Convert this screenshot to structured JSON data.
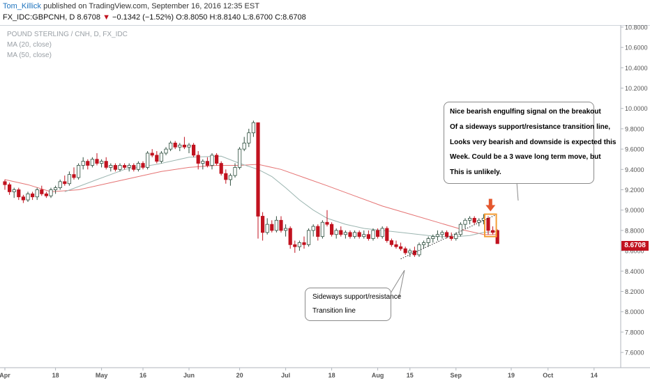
{
  "header": {
    "author": "Tom_Killick",
    "published_text": "published on TradingView.com, September 16, 2016 12:35 EST",
    "symbol": "FX_IDC:GBPCNH, D",
    "last": "8.6708",
    "change_arrow": "▼",
    "change": "−0.1342 (−1.52%)",
    "open": "O:8.8050",
    "high": "H:8.8140",
    "low": "L:8.6700",
    "close": "C:8.6708"
  },
  "legend": {
    "title": "POUND STERLING / CNH, D, FX_IDC",
    "ma20": "MA (20, close)",
    "ma50": "MA (50, close)"
  },
  "annotations": {
    "breakout_lines": [
      "Nice bearish engulfing signal on the breakout",
      "Of a sideways support/resistance transition line,",
      "Looks very bearish and downside is expected this",
      "Week. Could be a 3 wave long term move, but",
      "This is unlikely."
    ],
    "trendline_lines": [
      "Sideways support/resistance",
      "Transition line"
    ]
  },
  "price_tag": "8.6708",
  "colors": {
    "up_fill": "#ffffff",
    "up_border": "#2f4f3f",
    "down": "#c1121f",
    "ma20": "#9bb5b0",
    "ma50": "#e57373",
    "highlight": "#f39c34",
    "signal_arrow": "#e4572e"
  },
  "chart_data": {
    "type": "candlestick",
    "y_axis": {
      "ticks": [
        "10.8000",
        "10.6000",
        "10.4000",
        "10.2000",
        "10.0000",
        "9.8000",
        "9.6000",
        "9.4000",
        "9.2000",
        "9.0000",
        "8.8000",
        "8.6000",
        "8.4000",
        "8.2000",
        "8.0000",
        "7.8000",
        "7.6000"
      ],
      "range": [
        7.45,
        10.82
      ]
    },
    "x_axis": {
      "labels": [
        "Apr",
        "18",
        "May",
        "16",
        "Jun",
        "20",
        "Jul",
        "18",
        "Aug",
        "15",
        "Sep",
        "19",
        "Oct",
        "14"
      ],
      "label_index": [
        0,
        11,
        21,
        30,
        40,
        51,
        61,
        71,
        81,
        88,
        98,
        110,
        118,
        128
      ]
    },
    "candles": [
      {
        "o": 9.28,
        "h": 9.3,
        "l": 9.2,
        "c": 9.25
      },
      {
        "o": 9.25,
        "h": 9.27,
        "l": 9.15,
        "c": 9.18
      },
      {
        "o": 9.18,
        "h": 9.22,
        "l": 9.12,
        "c": 9.2
      },
      {
        "o": 9.2,
        "h": 9.22,
        "l": 9.1,
        "c": 9.13
      },
      {
        "o": 9.13,
        "h": 9.15,
        "l": 9.07,
        "c": 9.1
      },
      {
        "o": 9.1,
        "h": 9.18,
        "l": 9.08,
        "c": 9.16
      },
      {
        "o": 9.16,
        "h": 9.18,
        "l": 9.1,
        "c": 9.13
      },
      {
        "o": 9.13,
        "h": 9.22,
        "l": 9.1,
        "c": 9.2
      },
      {
        "o": 9.2,
        "h": 9.24,
        "l": 9.14,
        "c": 9.16
      },
      {
        "o": 9.16,
        "h": 9.18,
        "l": 9.12,
        "c": 9.14
      },
      {
        "o": 9.14,
        "h": 9.22,
        "l": 9.12,
        "c": 9.2
      },
      {
        "o": 9.2,
        "h": 9.24,
        "l": 9.16,
        "c": 9.22
      },
      {
        "o": 9.22,
        "h": 9.3,
        "l": 9.2,
        "c": 9.28
      },
      {
        "o": 9.28,
        "h": 9.34,
        "l": 9.24,
        "c": 9.26
      },
      {
        "o": 9.26,
        "h": 9.38,
        "l": 9.24,
        "c": 9.35
      },
      {
        "o": 9.35,
        "h": 9.42,
        "l": 9.3,
        "c": 9.32
      },
      {
        "o": 9.32,
        "h": 9.46,
        "l": 9.3,
        "c": 9.44
      },
      {
        "o": 9.44,
        "h": 9.52,
        "l": 9.4,
        "c": 9.48
      },
      {
        "o": 9.48,
        "h": 9.5,
        "l": 9.4,
        "c": 9.44
      },
      {
        "o": 9.44,
        "h": 9.52,
        "l": 9.42,
        "c": 9.5
      },
      {
        "o": 9.5,
        "h": 9.56,
        "l": 9.44,
        "c": 9.46
      },
      {
        "o": 9.46,
        "h": 9.5,
        "l": 9.42,
        "c": 9.48
      },
      {
        "o": 9.48,
        "h": 9.52,
        "l": 9.4,
        "c": 9.42
      },
      {
        "o": 9.42,
        "h": 9.46,
        "l": 9.38,
        "c": 9.44
      },
      {
        "o": 9.44,
        "h": 9.46,
        "l": 9.38,
        "c": 9.4
      },
      {
        "o": 9.4,
        "h": 9.46,
        "l": 9.38,
        "c": 9.44
      },
      {
        "o": 9.44,
        "h": 9.46,
        "l": 9.4,
        "c": 9.42
      },
      {
        "o": 9.42,
        "h": 9.46,
        "l": 9.38,
        "c": 9.44
      },
      {
        "o": 9.44,
        "h": 9.46,
        "l": 9.38,
        "c": 9.4
      },
      {
        "o": 9.4,
        "h": 9.48,
        "l": 9.38,
        "c": 9.46
      },
      {
        "o": 9.46,
        "h": 9.48,
        "l": 9.4,
        "c": 9.42
      },
      {
        "o": 9.42,
        "h": 9.58,
        "l": 9.4,
        "c": 9.56
      },
      {
        "o": 9.56,
        "h": 9.6,
        "l": 9.52,
        "c": 9.54
      },
      {
        "o": 9.54,
        "h": 9.58,
        "l": 9.46,
        "c": 9.48
      },
      {
        "o": 9.48,
        "h": 9.58,
        "l": 9.46,
        "c": 9.56
      },
      {
        "o": 9.56,
        "h": 9.62,
        "l": 9.54,
        "c": 9.6
      },
      {
        "o": 9.6,
        "h": 9.68,
        "l": 9.58,
        "c": 9.66
      },
      {
        "o": 9.66,
        "h": 9.68,
        "l": 9.6,
        "c": 9.62
      },
      {
        "o": 9.62,
        "h": 9.66,
        "l": 9.58,
        "c": 9.64
      },
      {
        "o": 9.64,
        "h": 9.72,
        "l": 9.6,
        "c": 9.62
      },
      {
        "o": 9.62,
        "h": 9.66,
        "l": 9.56,
        "c": 9.64
      },
      {
        "o": 9.64,
        "h": 9.66,
        "l": 9.52,
        "c": 9.54
      },
      {
        "o": 9.54,
        "h": 9.58,
        "l": 9.4,
        "c": 9.46
      },
      {
        "o": 9.46,
        "h": 9.5,
        "l": 9.4,
        "c": 9.48
      },
      {
        "o": 9.48,
        "h": 9.52,
        "l": 9.42,
        "c": 9.44
      },
      {
        "o": 9.44,
        "h": 9.56,
        "l": 9.4,
        "c": 9.54
      },
      {
        "o": 9.54,
        "h": 9.56,
        "l": 9.44,
        "c": 9.46
      },
      {
        "o": 9.46,
        "h": 9.48,
        "l": 9.34,
        "c": 9.36
      },
      {
        "o": 9.36,
        "h": 9.4,
        "l": 9.26,
        "c": 9.3
      },
      {
        "o": 9.3,
        "h": 9.36,
        "l": 9.24,
        "c": 9.34
      },
      {
        "o": 9.34,
        "h": 9.46,
        "l": 9.32,
        "c": 9.42
      },
      {
        "o": 9.42,
        "h": 9.62,
        "l": 9.4,
        "c": 9.6
      },
      {
        "o": 9.6,
        "h": 9.72,
        "l": 9.58,
        "c": 9.66
      },
      {
        "o": 9.66,
        "h": 9.8,
        "l": 9.62,
        "c": 9.76
      },
      {
        "o": 9.76,
        "h": 9.88,
        "l": 9.72,
        "c": 9.86
      },
      {
        "o": 9.86,
        "h": 9.86,
        "l": 8.72,
        "c": 8.94
      },
      {
        "o": 8.94,
        "h": 8.98,
        "l": 8.7,
        "c": 8.78
      },
      {
        "o": 8.78,
        "h": 8.92,
        "l": 8.76,
        "c": 8.86
      },
      {
        "o": 8.86,
        "h": 8.9,
        "l": 8.78,
        "c": 8.8
      },
      {
        "o": 8.8,
        "h": 8.94,
        "l": 8.78,
        "c": 8.9
      },
      {
        "o": 8.9,
        "h": 8.94,
        "l": 8.78,
        "c": 8.8
      },
      {
        "o": 8.8,
        "h": 8.86,
        "l": 8.74,
        "c": 8.82
      },
      {
        "o": 8.82,
        "h": 8.84,
        "l": 8.62,
        "c": 8.66
      },
      {
        "o": 8.66,
        "h": 8.7,
        "l": 8.58,
        "c": 8.64
      },
      {
        "o": 8.64,
        "h": 8.7,
        "l": 8.6,
        "c": 8.68
      },
      {
        "o": 8.68,
        "h": 8.74,
        "l": 8.62,
        "c": 8.66
      },
      {
        "o": 8.66,
        "h": 8.82,
        "l": 8.64,
        "c": 8.8
      },
      {
        "o": 8.8,
        "h": 8.86,
        "l": 8.74,
        "c": 8.84
      },
      {
        "o": 8.84,
        "h": 8.86,
        "l": 8.7,
        "c": 8.74
      },
      {
        "o": 8.74,
        "h": 8.9,
        "l": 8.72,
        "c": 8.88
      },
      {
        "o": 8.88,
        "h": 9.0,
        "l": 8.84,
        "c": 8.86
      },
      {
        "o": 8.86,
        "h": 8.88,
        "l": 8.74,
        "c": 8.76
      },
      {
        "o": 8.76,
        "h": 8.82,
        "l": 8.72,
        "c": 8.8
      },
      {
        "o": 8.8,
        "h": 8.84,
        "l": 8.74,
        "c": 8.76
      },
      {
        "o": 8.76,
        "h": 8.8,
        "l": 8.72,
        "c": 8.78
      },
      {
        "o": 8.78,
        "h": 8.8,
        "l": 8.72,
        "c": 8.74
      },
      {
        "o": 8.74,
        "h": 8.8,
        "l": 8.72,
        "c": 8.78
      },
      {
        "o": 8.78,
        "h": 8.8,
        "l": 8.72,
        "c": 8.74
      },
      {
        "o": 8.74,
        "h": 8.8,
        "l": 8.72,
        "c": 8.76
      },
      {
        "o": 8.76,
        "h": 8.8,
        "l": 8.7,
        "c": 8.72
      },
      {
        "o": 8.72,
        "h": 8.82,
        "l": 8.7,
        "c": 8.8
      },
      {
        "o": 8.8,
        "h": 8.82,
        "l": 8.72,
        "c": 8.74
      },
      {
        "o": 8.74,
        "h": 8.84,
        "l": 8.72,
        "c": 8.82
      },
      {
        "o": 8.82,
        "h": 8.84,
        "l": 8.68,
        "c": 8.7
      },
      {
        "o": 8.7,
        "h": 8.72,
        "l": 8.64,
        "c": 8.66
      },
      {
        "o": 8.66,
        "h": 8.7,
        "l": 8.62,
        "c": 8.64
      },
      {
        "o": 8.64,
        "h": 8.68,
        "l": 8.6,
        "c": 8.62
      },
      {
        "o": 8.62,
        "h": 8.64,
        "l": 8.56,
        "c": 8.58
      },
      {
        "o": 8.58,
        "h": 8.62,
        "l": 8.54,
        "c": 8.6
      },
      {
        "o": 8.6,
        "h": 8.64,
        "l": 8.54,
        "c": 8.56
      },
      {
        "o": 8.56,
        "h": 8.68,
        "l": 8.54,
        "c": 8.66
      },
      {
        "o": 8.66,
        "h": 8.7,
        "l": 8.62,
        "c": 8.68
      },
      {
        "o": 8.68,
        "h": 8.74,
        "l": 8.64,
        "c": 8.72
      },
      {
        "o": 8.72,
        "h": 8.76,
        "l": 8.68,
        "c": 8.74
      },
      {
        "o": 8.74,
        "h": 8.8,
        "l": 8.7,
        "c": 8.76
      },
      {
        "o": 8.76,
        "h": 8.8,
        "l": 8.72,
        "c": 8.78
      },
      {
        "o": 8.78,
        "h": 8.8,
        "l": 8.72,
        "c": 8.74
      },
      {
        "o": 8.74,
        "h": 8.78,
        "l": 8.7,
        "c": 8.72
      },
      {
        "o": 8.72,
        "h": 8.78,
        "l": 8.7,
        "c": 8.76
      },
      {
        "o": 8.76,
        "h": 8.88,
        "l": 8.74,
        "c": 8.86
      },
      {
        "o": 8.86,
        "h": 8.92,
        "l": 8.82,
        "c": 8.9
      },
      {
        "o": 8.9,
        "h": 8.94,
        "l": 8.86,
        "c": 8.92
      },
      {
        "o": 8.92,
        "h": 8.94,
        "l": 8.86,
        "c": 8.88
      },
      {
        "o": 8.88,
        "h": 8.92,
        "l": 8.84,
        "c": 8.9
      },
      {
        "o": 8.9,
        "h": 8.96,
        "l": 8.86,
        "c": 8.92
      },
      {
        "o": 8.92,
        "h": 8.94,
        "l": 8.76,
        "c": 8.8
      },
      {
        "o": 8.8,
        "h": 8.84,
        "l": 8.76,
        "c": 8.78
      },
      {
        "o": 8.8,
        "h": 8.81,
        "l": 8.67,
        "c": 8.67
      }
    ],
    "ma20": [
      [
        13,
        9.18
      ],
      [
        20,
        9.3
      ],
      [
        26,
        9.4
      ],
      [
        33,
        9.45
      ],
      [
        40,
        9.52
      ],
      [
        47,
        9.53
      ],
      [
        51,
        9.46
      ],
      [
        55,
        9.4
      ],
      [
        58,
        9.33
      ],
      [
        61,
        9.22
      ],
      [
        64,
        9.1
      ],
      [
        67,
        9.0
      ],
      [
        70,
        8.92
      ],
      [
        74,
        8.86
      ],
      [
        78,
        8.82
      ],
      [
        82,
        8.8
      ],
      [
        86,
        8.78
      ],
      [
        90,
        8.76
      ],
      [
        94,
        8.74
      ],
      [
        98,
        8.74
      ],
      [
        101,
        8.75
      ],
      [
        104,
        8.78
      ],
      [
        107,
        8.79
      ]
    ],
    "ma50": [
      [
        0,
        9.3
      ],
      [
        5,
        9.25
      ],
      [
        10,
        9.18
      ],
      [
        16,
        9.2
      ],
      [
        22,
        9.26
      ],
      [
        28,
        9.32
      ],
      [
        34,
        9.38
      ],
      [
        40,
        9.42
      ],
      [
        46,
        9.44
      ],
      [
        51,
        9.44
      ],
      [
        55,
        9.45
      ],
      [
        60,
        9.4
      ],
      [
        65,
        9.32
      ],
      [
        70,
        9.24
      ],
      [
        76,
        9.14
      ],
      [
        82,
        9.04
      ],
      [
        88,
        8.96
      ],
      [
        94,
        8.88
      ],
      [
        100,
        8.8
      ],
      [
        104,
        8.76
      ],
      [
        107,
        8.76
      ]
    ],
    "trendline": {
      "from": [
        86,
        8.52
      ],
      "to": [
        107,
        8.96
      ]
    }
  }
}
